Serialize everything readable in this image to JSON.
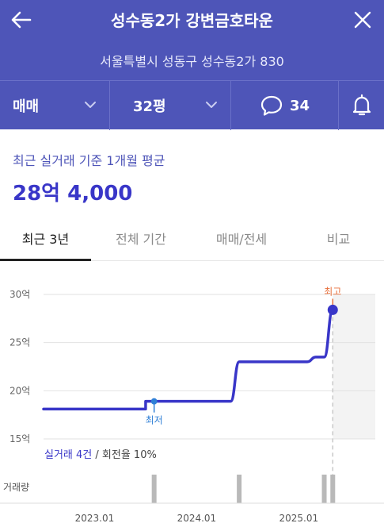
{
  "header": {
    "title": "성수동2가 강변금호타운",
    "address": "서울특별시 성동구 성수동2가 830"
  },
  "filters": {
    "trade_type": "매매",
    "size": "32평",
    "comment_count": "34"
  },
  "summary": {
    "label": "최근 실거래 기준 1개월 평균",
    "value": "28억 4,000"
  },
  "tabs": [
    {
      "label": "최근 3년",
      "active": true
    },
    {
      "label": "전체 기간",
      "active": false
    },
    {
      "label": "매매/전세",
      "active": false
    },
    {
      "label": "비교",
      "active": false
    }
  ],
  "trade_info": {
    "count_text": "실거래 4건",
    "separator": " / ",
    "turnover_text": "회전율 10%"
  },
  "volume_label": "거래량",
  "colors": {
    "header_bg": "#4e55b8",
    "accent": "#3936c8",
    "max_marker": "#e8703c",
    "min_marker": "#2f7fd6"
  },
  "chart_data": {
    "type": "line",
    "y_unit": "억",
    "ylim": [
      15,
      30
    ],
    "y_ticks": [
      "30억",
      "25억",
      "20억",
      "15억"
    ],
    "y_tick_values": [
      30,
      25,
      20,
      15
    ],
    "x_ticks": [
      "2023.01",
      "2024.01",
      "2025.01"
    ],
    "x_tick_dates": [
      "2023-01",
      "2024-01",
      "2025-01"
    ],
    "x_range": [
      "2022-07",
      "2025-10"
    ],
    "points": [
      {
        "x": "2022-07",
        "y": 18.1
      },
      {
        "x": "2023-07",
        "y": 18.1
      },
      {
        "x": "2023-07",
        "y": 18.9
      },
      {
        "x": "2024-05",
        "y": 18.9
      },
      {
        "x": "2024-06",
        "y": 23.0
      },
      {
        "x": "2025-02",
        "y": 23.0
      },
      {
        "x": "2025-03",
        "y": 23.5
      },
      {
        "x": "2025-04",
        "y": 23.5
      },
      {
        "x": "2025-05",
        "y": 28.4
      }
    ],
    "min_label": "최저",
    "min_point": {
      "x": "2023-08",
      "y": 18.9
    },
    "max_label": "최고",
    "max_point": {
      "x": "2025-05",
      "y": 28.4
    },
    "shaded_region_from": "2025-05",
    "volume_bars": [
      "2023-08",
      "2024-06",
      "2025-04",
      "2025-05"
    ]
  }
}
